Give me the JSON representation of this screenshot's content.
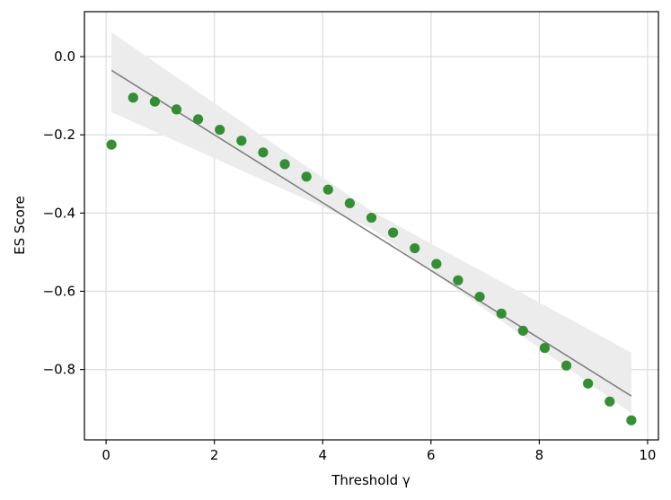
{
  "chart_data": {
    "type": "scatter",
    "xlabel": "Threshold γ",
    "ylabel": "ES Score",
    "xlim": [
      -0.4,
      10.2
    ],
    "ylim": [
      -0.98,
      0.115
    ],
    "xticks": [
      0,
      2,
      4,
      6,
      8,
      10
    ],
    "xtick_labels": [
      "0",
      "2",
      "4",
      "6",
      "8",
      "10"
    ],
    "yticks": [
      0.0,
      -0.2,
      -0.4,
      -0.6,
      -0.8
    ],
    "ytick_labels": [
      "0.0",
      "−0.2",
      "−0.4",
      "−0.6",
      "−0.8"
    ],
    "grid": true,
    "x": [
      0.1,
      0.5,
      0.9,
      1.3,
      1.7,
      2.1,
      2.5,
      2.9,
      3.3,
      3.7,
      4.1,
      4.5,
      4.9,
      5.3,
      5.7,
      6.1,
      6.5,
      6.9,
      7.3,
      7.7,
      8.1,
      8.5,
      8.9,
      9.3,
      9.7
    ],
    "y": [
      -0.225,
      -0.105,
      -0.115,
      -0.135,
      -0.16,
      -0.187,
      -0.215,
      -0.245,
      -0.275,
      -0.307,
      -0.34,
      -0.375,
      -0.412,
      -0.45,
      -0.49,
      -0.53,
      -0.572,
      -0.614,
      -0.657,
      -0.701,
      -0.745,
      -0.79,
      -0.836,
      -0.882,
      -0.93
    ],
    "regression_line": {
      "x": [
        0.1,
        9.7
      ],
      "y": [
        -0.035,
        -0.868
      ]
    },
    "confidence_band": {
      "x": [
        0.1,
        4.9,
        9.7
      ],
      "upper": [
        0.062,
        -0.395,
        -0.757
      ],
      "lower": [
        -0.142,
        -0.44,
        -0.912
      ]
    },
    "colors": {
      "points": "#2a8a2a",
      "line": "#808080",
      "band": "#ececec",
      "grid": "#dcdcdc"
    }
  }
}
